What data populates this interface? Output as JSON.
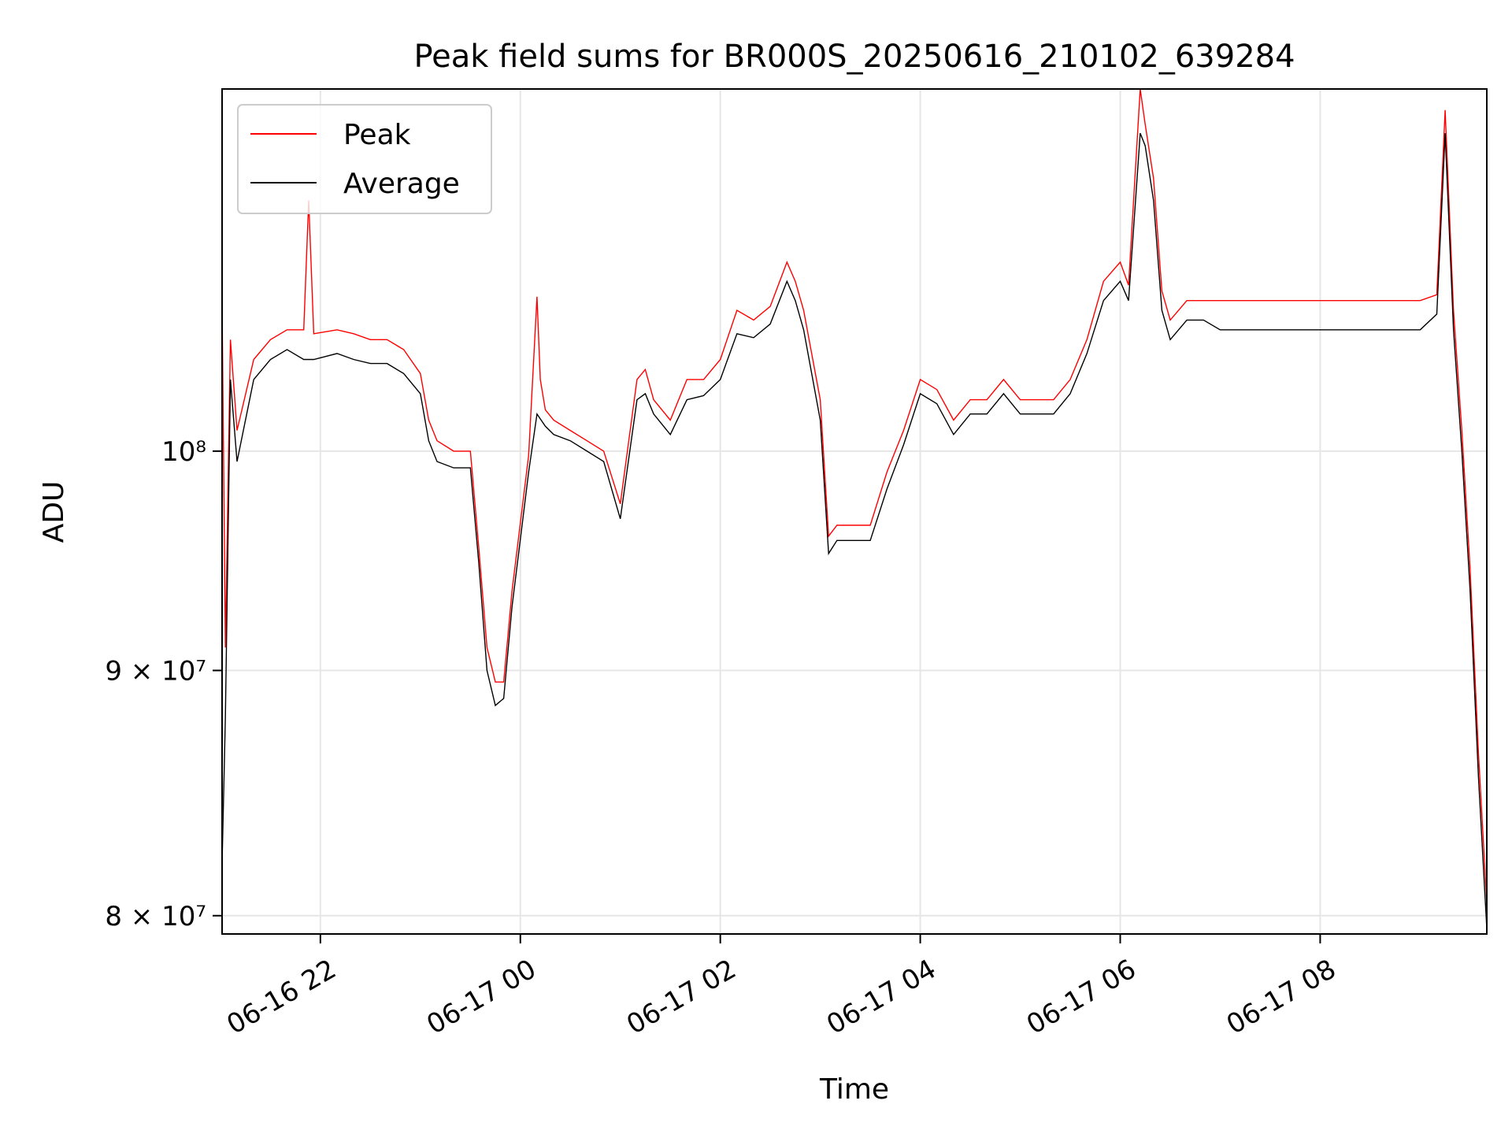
{
  "chart_data": {
    "type": "line",
    "title": "Peak field sums for BR000S_20250616_210102_639284",
    "xlabel": "Time",
    "ylabel": "ADU",
    "xlim": [
      "2025-06-16 21:01",
      "2025-06-17 09:40"
    ],
    "ylim": [
      79300000,
      119000000
    ],
    "yscale": "log",
    "grid": true,
    "legend": "upper-left",
    "xticks": [
      {
        "value": "2025-06-16 22:00",
        "label": "06-16 22"
      },
      {
        "value": "2025-06-17 00:00",
        "label": "06-17 00"
      },
      {
        "value": "2025-06-17 02:00",
        "label": "06-17 02"
      },
      {
        "value": "2025-06-17 04:00",
        "label": "06-17 04"
      },
      {
        "value": "2025-06-17 06:00",
        "label": "06-17 06"
      },
      {
        "value": "2025-06-17 08:00",
        "label": "06-17 08"
      }
    ],
    "yticks": [
      {
        "value": 80000000,
        "label": "8 × 10⁷"
      },
      {
        "value": 90000000,
        "label": "9 × 10⁷"
      },
      {
        "value": 100000000,
        "label": "10⁸"
      }
    ],
    "series": [
      {
        "name": "Peak",
        "color": "#ff0000",
        "x": [
          "2025-06-16 21:01",
          "2025-06-16 21:03",
          "2025-06-16 21:06",
          "2025-06-16 21:10",
          "2025-06-16 21:20",
          "2025-06-16 21:30",
          "2025-06-16 21:40",
          "2025-06-16 21:50",
          "2025-06-16 21:53",
          "2025-06-16 21:56",
          "2025-06-16 22:10",
          "2025-06-16 22:20",
          "2025-06-16 22:30",
          "2025-06-16 22:40",
          "2025-06-16 22:50",
          "2025-06-16 23:00",
          "2025-06-16 23:05",
          "2025-06-16 23:10",
          "2025-06-16 23:20",
          "2025-06-16 23:30",
          "2025-06-16 23:35",
          "2025-06-16 23:40",
          "2025-06-16 23:45",
          "2025-06-16 23:50",
          "2025-06-16 23:55",
          "2025-06-17 00:05",
          "2025-06-17 00:10",
          "2025-06-17 00:12",
          "2025-06-17 00:15",
          "2025-06-17 00:20",
          "2025-06-17 00:30",
          "2025-06-17 00:40",
          "2025-06-17 00:50",
          "2025-06-17 01:00",
          "2025-06-17 01:10",
          "2025-06-17 01:15",
          "2025-06-17 01:20",
          "2025-06-17 01:30",
          "2025-06-17 01:40",
          "2025-06-17 01:50",
          "2025-06-17 02:00",
          "2025-06-17 02:10",
          "2025-06-17 02:20",
          "2025-06-17 02:30",
          "2025-06-17 02:40",
          "2025-06-17 02:45",
          "2025-06-17 02:50",
          "2025-06-17 03:00",
          "2025-06-17 03:05",
          "2025-06-17 03:10",
          "2025-06-17 03:20",
          "2025-06-17 03:30",
          "2025-06-17 03:40",
          "2025-06-17 03:50",
          "2025-06-17 04:00",
          "2025-06-17 04:10",
          "2025-06-17 04:20",
          "2025-06-17 04:30",
          "2025-06-17 04:40",
          "2025-06-17 04:50",
          "2025-06-17 05:00",
          "2025-06-17 05:10",
          "2025-06-17 05:20",
          "2025-06-17 05:30",
          "2025-06-17 05:40",
          "2025-06-17 05:50",
          "2025-06-17 06:00",
          "2025-06-17 06:05",
          "2025-06-17 06:12",
          "2025-06-17 06:15",
          "2025-06-17 06:20",
          "2025-06-17 06:25",
          "2025-06-17 06:30",
          "2025-06-17 06:40",
          "2025-06-17 06:50",
          "2025-06-17 07:00",
          "2025-06-17 07:10",
          "2025-06-17 07:20",
          "2025-06-17 07:30",
          "2025-06-17 07:40",
          "2025-06-17 07:50",
          "2025-06-17 08:00",
          "2025-06-17 08:10",
          "2025-06-17 08:20",
          "2025-06-17 08:30",
          "2025-06-17 08:40",
          "2025-06-17 08:50",
          "2025-06-17 09:00",
          "2025-06-17 09:10",
          "2025-06-17 09:15",
          "2025-06-17 09:20",
          "2025-06-17 09:25",
          "2025-06-17 09:30",
          "2025-06-17 09:35",
          "2025-06-17 09:40"
        ],
        "y": [
          107500000,
          91000000,
          105500000,
          101000000,
          104500000,
          105500000,
          106000000,
          106000000,
          112800000,
          105800000,
          106000000,
          105800000,
          105500000,
          105500000,
          105000000,
          103800000,
          101500000,
          100500000,
          100000000,
          100000000,
          95500000,
          91000000,
          89500000,
          89500000,
          93500000,
          99800000,
          107700000,
          103500000,
          102000000,
          101500000,
          101000000,
          100500000,
          100000000,
          97500000,
          103500000,
          104000000,
          102500000,
          101500000,
          103500000,
          103500000,
          104500000,
          107000000,
          106500000,
          107200000,
          109500000,
          108500000,
          107000000,
          102500000,
          96000000,
          96500000,
          96500000,
          96500000,
          99000000,
          101000000,
          103500000,
          103000000,
          101500000,
          102500000,
          102500000,
          103500000,
          102500000,
          102500000,
          102500000,
          103500000,
          105500000,
          108500000,
          109500000,
          108300000,
          119000000,
          117000000,
          114000000,
          108000000,
          106500000,
          107500000,
          107500000,
          107500000,
          107500000,
          107500000,
          107500000,
          107500000,
          107500000,
          107500000,
          107500000,
          107500000,
          107500000,
          107500000,
          107500000,
          107500000,
          107800000,
          117800000,
          107000000,
          101000000,
          94500000,
          86500000,
          80500000
        ]
      },
      {
        "name": "Average",
        "color": "#000000",
        "x": [
          "2025-06-16 21:01",
          "2025-06-16 21:03",
          "2025-06-16 21:06",
          "2025-06-16 21:10",
          "2025-06-16 21:20",
          "2025-06-16 21:30",
          "2025-06-16 21:40",
          "2025-06-16 21:50",
          "2025-06-16 21:56",
          "2025-06-16 22:10",
          "2025-06-16 22:20",
          "2025-06-16 22:30",
          "2025-06-16 22:40",
          "2025-06-16 22:50",
          "2025-06-16 23:00",
          "2025-06-16 23:05",
          "2025-06-16 23:10",
          "2025-06-16 23:20",
          "2025-06-16 23:30",
          "2025-06-16 23:35",
          "2025-06-16 23:40",
          "2025-06-16 23:45",
          "2025-06-16 23:50",
          "2025-06-16 23:55",
          "2025-06-17 00:05",
          "2025-06-17 00:10",
          "2025-06-17 00:15",
          "2025-06-17 00:20",
          "2025-06-17 00:30",
          "2025-06-17 00:40",
          "2025-06-17 00:50",
          "2025-06-17 01:00",
          "2025-06-17 01:10",
          "2025-06-17 01:15",
          "2025-06-17 01:20",
          "2025-06-17 01:30",
          "2025-06-17 01:40",
          "2025-06-17 01:50",
          "2025-06-17 02:00",
          "2025-06-17 02:10",
          "2025-06-17 02:20",
          "2025-06-17 02:30",
          "2025-06-17 02:40",
          "2025-06-17 02:45",
          "2025-06-17 02:50",
          "2025-06-17 03:00",
          "2025-06-17 03:05",
          "2025-06-17 03:10",
          "2025-06-17 03:20",
          "2025-06-17 03:30",
          "2025-06-17 03:40",
          "2025-06-17 03:50",
          "2025-06-17 04:00",
          "2025-06-17 04:10",
          "2025-06-17 04:20",
          "2025-06-17 04:30",
          "2025-06-17 04:40",
          "2025-06-17 04:50",
          "2025-06-17 05:00",
          "2025-06-17 05:10",
          "2025-06-17 05:20",
          "2025-06-17 05:30",
          "2025-06-17 05:40",
          "2025-06-17 05:50",
          "2025-06-17 06:00",
          "2025-06-17 06:05",
          "2025-06-17 06:12",
          "2025-06-17 06:15",
          "2025-06-17 06:20",
          "2025-06-17 06:25",
          "2025-06-17 06:30",
          "2025-06-17 06:40",
          "2025-06-17 06:50",
          "2025-06-17 07:00",
          "2025-06-17 07:10",
          "2025-06-17 07:20",
          "2025-06-17 07:30",
          "2025-06-17 07:40",
          "2025-06-17 07:50",
          "2025-06-17 08:00",
          "2025-06-17 08:10",
          "2025-06-17 08:20",
          "2025-06-17 08:30",
          "2025-06-17 08:40",
          "2025-06-17 08:50",
          "2025-06-17 09:00",
          "2025-06-17 09:10",
          "2025-06-17 09:15",
          "2025-06-17 09:20",
          "2025-06-17 09:25",
          "2025-06-17 09:30",
          "2025-06-17 09:35",
          "2025-06-17 09:40"
        ],
        "y": [
          82000000,
          88000000,
          103500000,
          99500000,
          103500000,
          104500000,
          105000000,
          104500000,
          104500000,
          104800000,
          104500000,
          104300000,
          104300000,
          103800000,
          102800000,
          100500000,
          99500000,
          99200000,
          99200000,
          94800000,
          90000000,
          88500000,
          88800000,
          92800000,
          99000000,
          101800000,
          101200000,
          100800000,
          100500000,
          100000000,
          99500000,
          96800000,
          102500000,
          102800000,
          101800000,
          100800000,
          102500000,
          102700000,
          103500000,
          105800000,
          105600000,
          106300000,
          108500000,
          107500000,
          106000000,
          101500000,
          95200000,
          95800000,
          95800000,
          95800000,
          98200000,
          100300000,
          102800000,
          102300000,
          100800000,
          101800000,
          101800000,
          102800000,
          101800000,
          101800000,
          101800000,
          102800000,
          104800000,
          107500000,
          108500000,
          107500000,
          116500000,
          115800000,
          112800000,
          107000000,
          105500000,
          106500000,
          106500000,
          106000000,
          106000000,
          106000000,
          106000000,
          106000000,
          106000000,
          106000000,
          106000000,
          106000000,
          106000000,
          106000000,
          106000000,
          106000000,
          106800000,
          116500000,
          106000000,
          100000000,
          93500000,
          85500000,
          79500000
        ]
      }
    ]
  }
}
